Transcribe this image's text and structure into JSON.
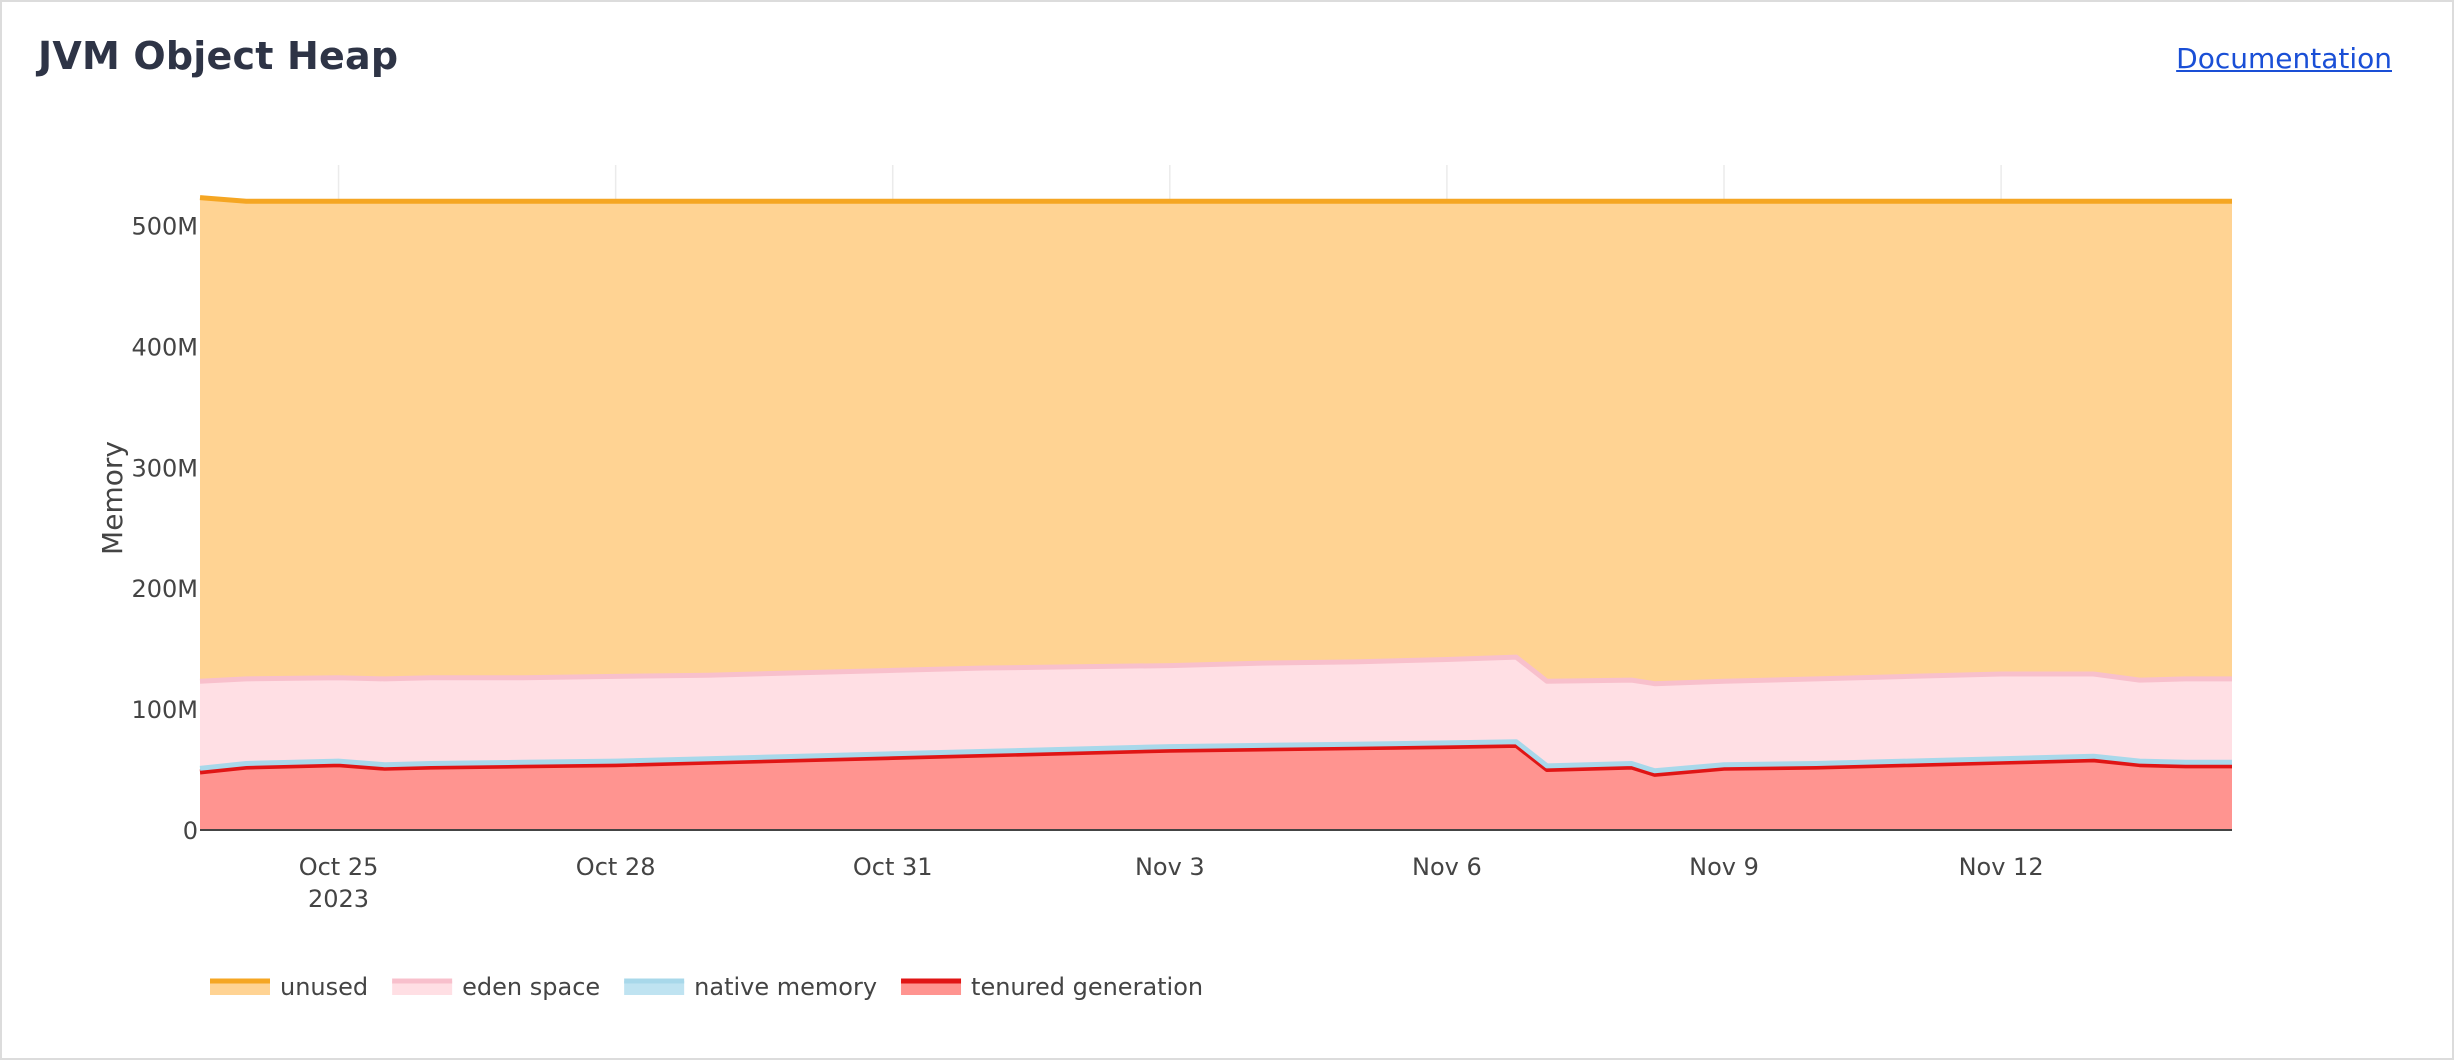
{
  "header": {
    "title": "JVM Object Heap",
    "documentation_link": "Documentation"
  },
  "chart_data": {
    "type": "area",
    "stacked": true,
    "ylabel": "Memory",
    "ylim": [
      0,
      550000000
    ],
    "xlim": [
      "2023-10-23T12:00",
      "2023-11-14T12:00"
    ],
    "grid": true,
    "legend_position": "bottom-left",
    "x_ticks": [
      {
        "date": "2023-10-25",
        "label": "Oct 25",
        "sublabel": "2023"
      },
      {
        "date": "2023-10-28",
        "label": "Oct 28",
        "sublabel": ""
      },
      {
        "date": "2023-10-31",
        "label": "Oct 31",
        "sublabel": ""
      },
      {
        "date": "2023-11-03",
        "label": "Nov 3",
        "sublabel": ""
      },
      {
        "date": "2023-11-06",
        "label": "Nov 6",
        "sublabel": ""
      },
      {
        "date": "2023-11-09",
        "label": "Nov 9",
        "sublabel": ""
      },
      {
        "date": "2023-11-12",
        "label": "Nov 12",
        "sublabel": ""
      }
    ],
    "y_ticks": [
      {
        "value": 0,
        "label": "0"
      },
      {
        "value": 100000000,
        "label": "100M"
      },
      {
        "value": 200000000,
        "label": "200M"
      },
      {
        "value": 300000000,
        "label": "300M"
      },
      {
        "value": 400000000,
        "label": "400M"
      },
      {
        "value": 500000000,
        "label": "500M"
      }
    ],
    "x": [
      "2023-10-23T12:00",
      "2023-10-24T00:00",
      "2023-10-25T00:00",
      "2023-10-25T12:00",
      "2023-10-26T00:00",
      "2023-10-27T00:00",
      "2023-10-28T00:00",
      "2023-10-29T00:00",
      "2023-10-30T00:00",
      "2023-10-31T00:00",
      "2023-11-01T00:00",
      "2023-11-02T00:00",
      "2023-11-03T00:00",
      "2023-11-04T00:00",
      "2023-11-05T00:00",
      "2023-11-06T00:00",
      "2023-11-06T18:00",
      "2023-11-07T02:00",
      "2023-11-08T00:00",
      "2023-11-08T06:00",
      "2023-11-09T00:00",
      "2023-11-10T00:00",
      "2023-11-11T00:00",
      "2023-11-12T00:00",
      "2023-11-13T00:00",
      "2023-11-13T12:00",
      "2023-11-14T00:00",
      "2023-11-14T12:00"
    ],
    "series": [
      {
        "name": "tenured generation",
        "line_color": "#e01515",
        "fill_color": "#ff9490",
        "values": [
          48000000,
          52000000,
          54000000,
          51000000,
          52000000,
          53000000,
          54000000,
          56000000,
          58000000,
          60000000,
          62000000,
          64000000,
          66000000,
          67000000,
          68000000,
          69000000,
          70000000,
          50000000,
          52000000,
          46000000,
          51000000,
          52000000,
          54000000,
          56000000,
          58000000,
          54000000,
          53000000,
          53000000
        ]
      },
      {
        "name": "native memory",
        "line_color": "#a8d8ea",
        "fill_color": "#bfe3f1",
        "values": [
          3000000,
          3000000,
          3000000,
          3000000,
          3000000,
          3000000,
          3000000,
          3000000,
          3000000,
          3000000,
          3000000,
          3000000,
          3000000,
          3000000,
          3000000,
          3000000,
          3000000,
          3000000,
          3000000,
          3000000,
          3000000,
          3000000,
          3000000,
          3000000,
          3000000,
          3000000,
          3000000,
          3000000
        ]
      },
      {
        "name": "eden space",
        "line_color": "#f8c0cc",
        "fill_color": "#ffdfe4",
        "values": [
          72000000,
          70000000,
          69000000,
          71000000,
          71000000,
          70000000,
          70000000,
          69000000,
          69000000,
          69000000,
          69000000,
          68000000,
          67000000,
          68000000,
          68000000,
          69000000,
          70000000,
          70000000,
          69000000,
          72000000,
          69000000,
          70000000,
          70000000,
          70000000,
          68000000,
          67000000,
          69000000,
          69000000
        ]
      },
      {
        "name": "unused",
        "line_color": "#f5a623",
        "fill_color": "#ffd393",
        "values": [
          400000000,
          395000000,
          394000000,
          395000000,
          394000000,
          394000000,
          393000000,
          392000000,
          390000000,
          388000000,
          386000000,
          385000000,
          384000000,
          382000000,
          381000000,
          379000000,
          377000000,
          397000000,
          396000000,
          399000000,
          397000000,
          395000000,
          393000000,
          391000000,
          391000000,
          396000000,
          395000000,
          395000000
        ]
      }
    ],
    "legend_order": [
      "unused",
      "eden space",
      "native memory",
      "tenured generation"
    ]
  }
}
